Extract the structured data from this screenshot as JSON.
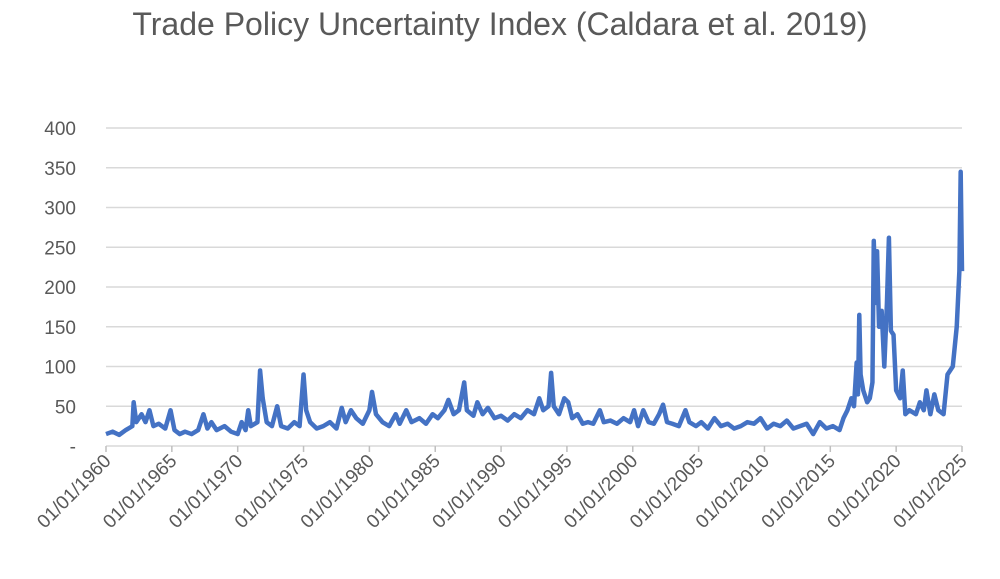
{
  "chart_data": {
    "type": "line",
    "title": "Trade Policy Uncertainty Index (Caldara et al. 2019)",
    "color": "#4472c4",
    "grid": true,
    "xlim": [
      1960,
      2025
    ],
    "xticks": [
      {
        "value": 1960,
        "label": "01/01/1960"
      },
      {
        "value": 1965,
        "label": "01/01/1965"
      },
      {
        "value": 1970,
        "label": "01/01/1970"
      },
      {
        "value": 1975,
        "label": "01/01/1975"
      },
      {
        "value": 1980,
        "label": "01/01/1980"
      },
      {
        "value": 1985,
        "label": "01/01/1985"
      },
      {
        "value": 1990,
        "label": "01/01/1990"
      },
      {
        "value": 1995,
        "label": "01/01/1995"
      },
      {
        "value": 2000,
        "label": "01/01/2000"
      },
      {
        "value": 2005,
        "label": "01/01/2005"
      },
      {
        "value": 2010,
        "label": "01/01/2010"
      },
      {
        "value": 2015,
        "label": "01/01/2015"
      },
      {
        "value": 2020,
        "label": "01/01/2020"
      },
      {
        "value": 2025,
        "label": "01/01/2025"
      }
    ],
    "ylim": [
      0,
      400
    ],
    "yticks": [
      {
        "value": 0,
        "label": "-"
      },
      50,
      100,
      150,
      200,
      250,
      300,
      350,
      400
    ],
    "x": [
      1960,
      1960.5,
      1961,
      1961.5,
      1962,
      1962.1,
      1962.3,
      1962.7,
      1963,
      1963.3,
      1963.6,
      1964,
      1964.5,
      1964.9,
      1965.2,
      1965.6,
      1966,
      1966.5,
      1967,
      1967.4,
      1967.7,
      1968,
      1968.4,
      1969,
      1969.5,
      1970,
      1970.3,
      1970.6,
      1970.8,
      1971,
      1971.5,
      1971.7,
      1971.9,
      1972.2,
      1972.6,
      1973,
      1973.3,
      1973.8,
      1974.3,
      1974.7,
      1975,
      1975.2,
      1975.5,
      1976,
      1976.5,
      1977,
      1977.5,
      1977.9,
      1978.2,
      1978.6,
      1979,
      1979.5,
      1980,
      1980.2,
      1980.5,
      1981,
      1981.5,
      1982,
      1982.3,
      1982.8,
      1983.2,
      1983.8,
      1984.3,
      1984.8,
      1985.2,
      1985.7,
      1986,
      1986.4,
      1986.8,
      1987.2,
      1987.4,
      1987.9,
      1988.2,
      1988.6,
      1989,
      1989.5,
      1990,
      1990.5,
      1991,
      1991.5,
      1992,
      1992.5,
      1992.9,
      1993.2,
      1993.6,
      1993.8,
      1994,
      1994.4,
      1994.8,
      1995.1,
      1995.4,
      1995.8,
      1996.2,
      1996.6,
      1997,
      1997.5,
      1997.8,
      1998.3,
      1998.8,
      1999.3,
      1999.8,
      2000.1,
      2000.4,
      2000.8,
      2001.2,
      2001.6,
      2002,
      2002.3,
      2002.6,
      2003,
      2003.5,
      2004,
      2004.3,
      2004.8,
      2005.2,
      2005.7,
      2006.2,
      2006.7,
      2007.2,
      2007.7,
      2008.2,
      2008.7,
      2009.2,
      2009.7,
      2010.2,
      2010.7,
      2011.2,
      2011.7,
      2012.2,
      2012.7,
      2013.2,
      2013.7,
      2014.2,
      2014.7,
      2015.2,
      2015.7,
      2016,
      2016.3,
      2016.6,
      2016.8,
      2017,
      2017.1,
      2017.2,
      2017.3,
      2017.5,
      2017.8,
      2018,
      2018.2,
      2018.3,
      2018.45,
      2018.55,
      2018.7,
      2018.9,
      2019.1,
      2019.3,
      2019.45,
      2019.6,
      2019.8,
      2020,
      2020.3,
      2020.5,
      2020.7,
      2021,
      2021.5,
      2021.8,
      2022.1,
      2022.3,
      2022.6,
      2022.9,
      2023.2,
      2023.6,
      2023.9,
      2024.3,
      2024.6,
      2024.8,
      2024.9,
      2025
    ],
    "values": [
      15,
      18,
      14,
      20,
      25,
      55,
      30,
      40,
      30,
      45,
      25,
      28,
      22,
      45,
      20,
      15,
      18,
      15,
      20,
      40,
      22,
      30,
      20,
      25,
      18,
      15,
      30,
      20,
      45,
      25,
      30,
      95,
      60,
      30,
      25,
      50,
      25,
      22,
      30,
      25,
      90,
      45,
      30,
      22,
      25,
      30,
      22,
      48,
      30,
      45,
      35,
      28,
      45,
      68,
      40,
      30,
      25,
      40,
      28,
      45,
      30,
      35,
      28,
      40,
      35,
      45,
      58,
      40,
      45,
      80,
      45,
      38,
      55,
      40,
      48,
      35,
      38,
      32,
      40,
      35,
      45,
      40,
      60,
      45,
      50,
      92,
      50,
      40,
      60,
      55,
      35,
      40,
      28,
      30,
      28,
      45,
      30,
      32,
      28,
      35,
      30,
      45,
      25,
      45,
      30,
      28,
      40,
      52,
      30,
      28,
      25,
      45,
      30,
      25,
      30,
      22,
      35,
      25,
      28,
      22,
      25,
      30,
      28,
      35,
      22,
      28,
      25,
      32,
      22,
      25,
      28,
      15,
      30,
      22,
      25,
      20,
      35,
      45,
      60,
      50,
      105,
      65,
      165,
      90,
      70,
      55,
      60,
      80,
      258,
      180,
      245,
      150,
      170,
      100,
      180,
      262,
      145,
      140,
      70,
      60,
      95,
      40,
      45,
      40,
      55,
      45,
      70,
      40,
      65,
      45,
      40,
      90,
      100,
      150,
      220,
      345,
      220
    ]
  }
}
